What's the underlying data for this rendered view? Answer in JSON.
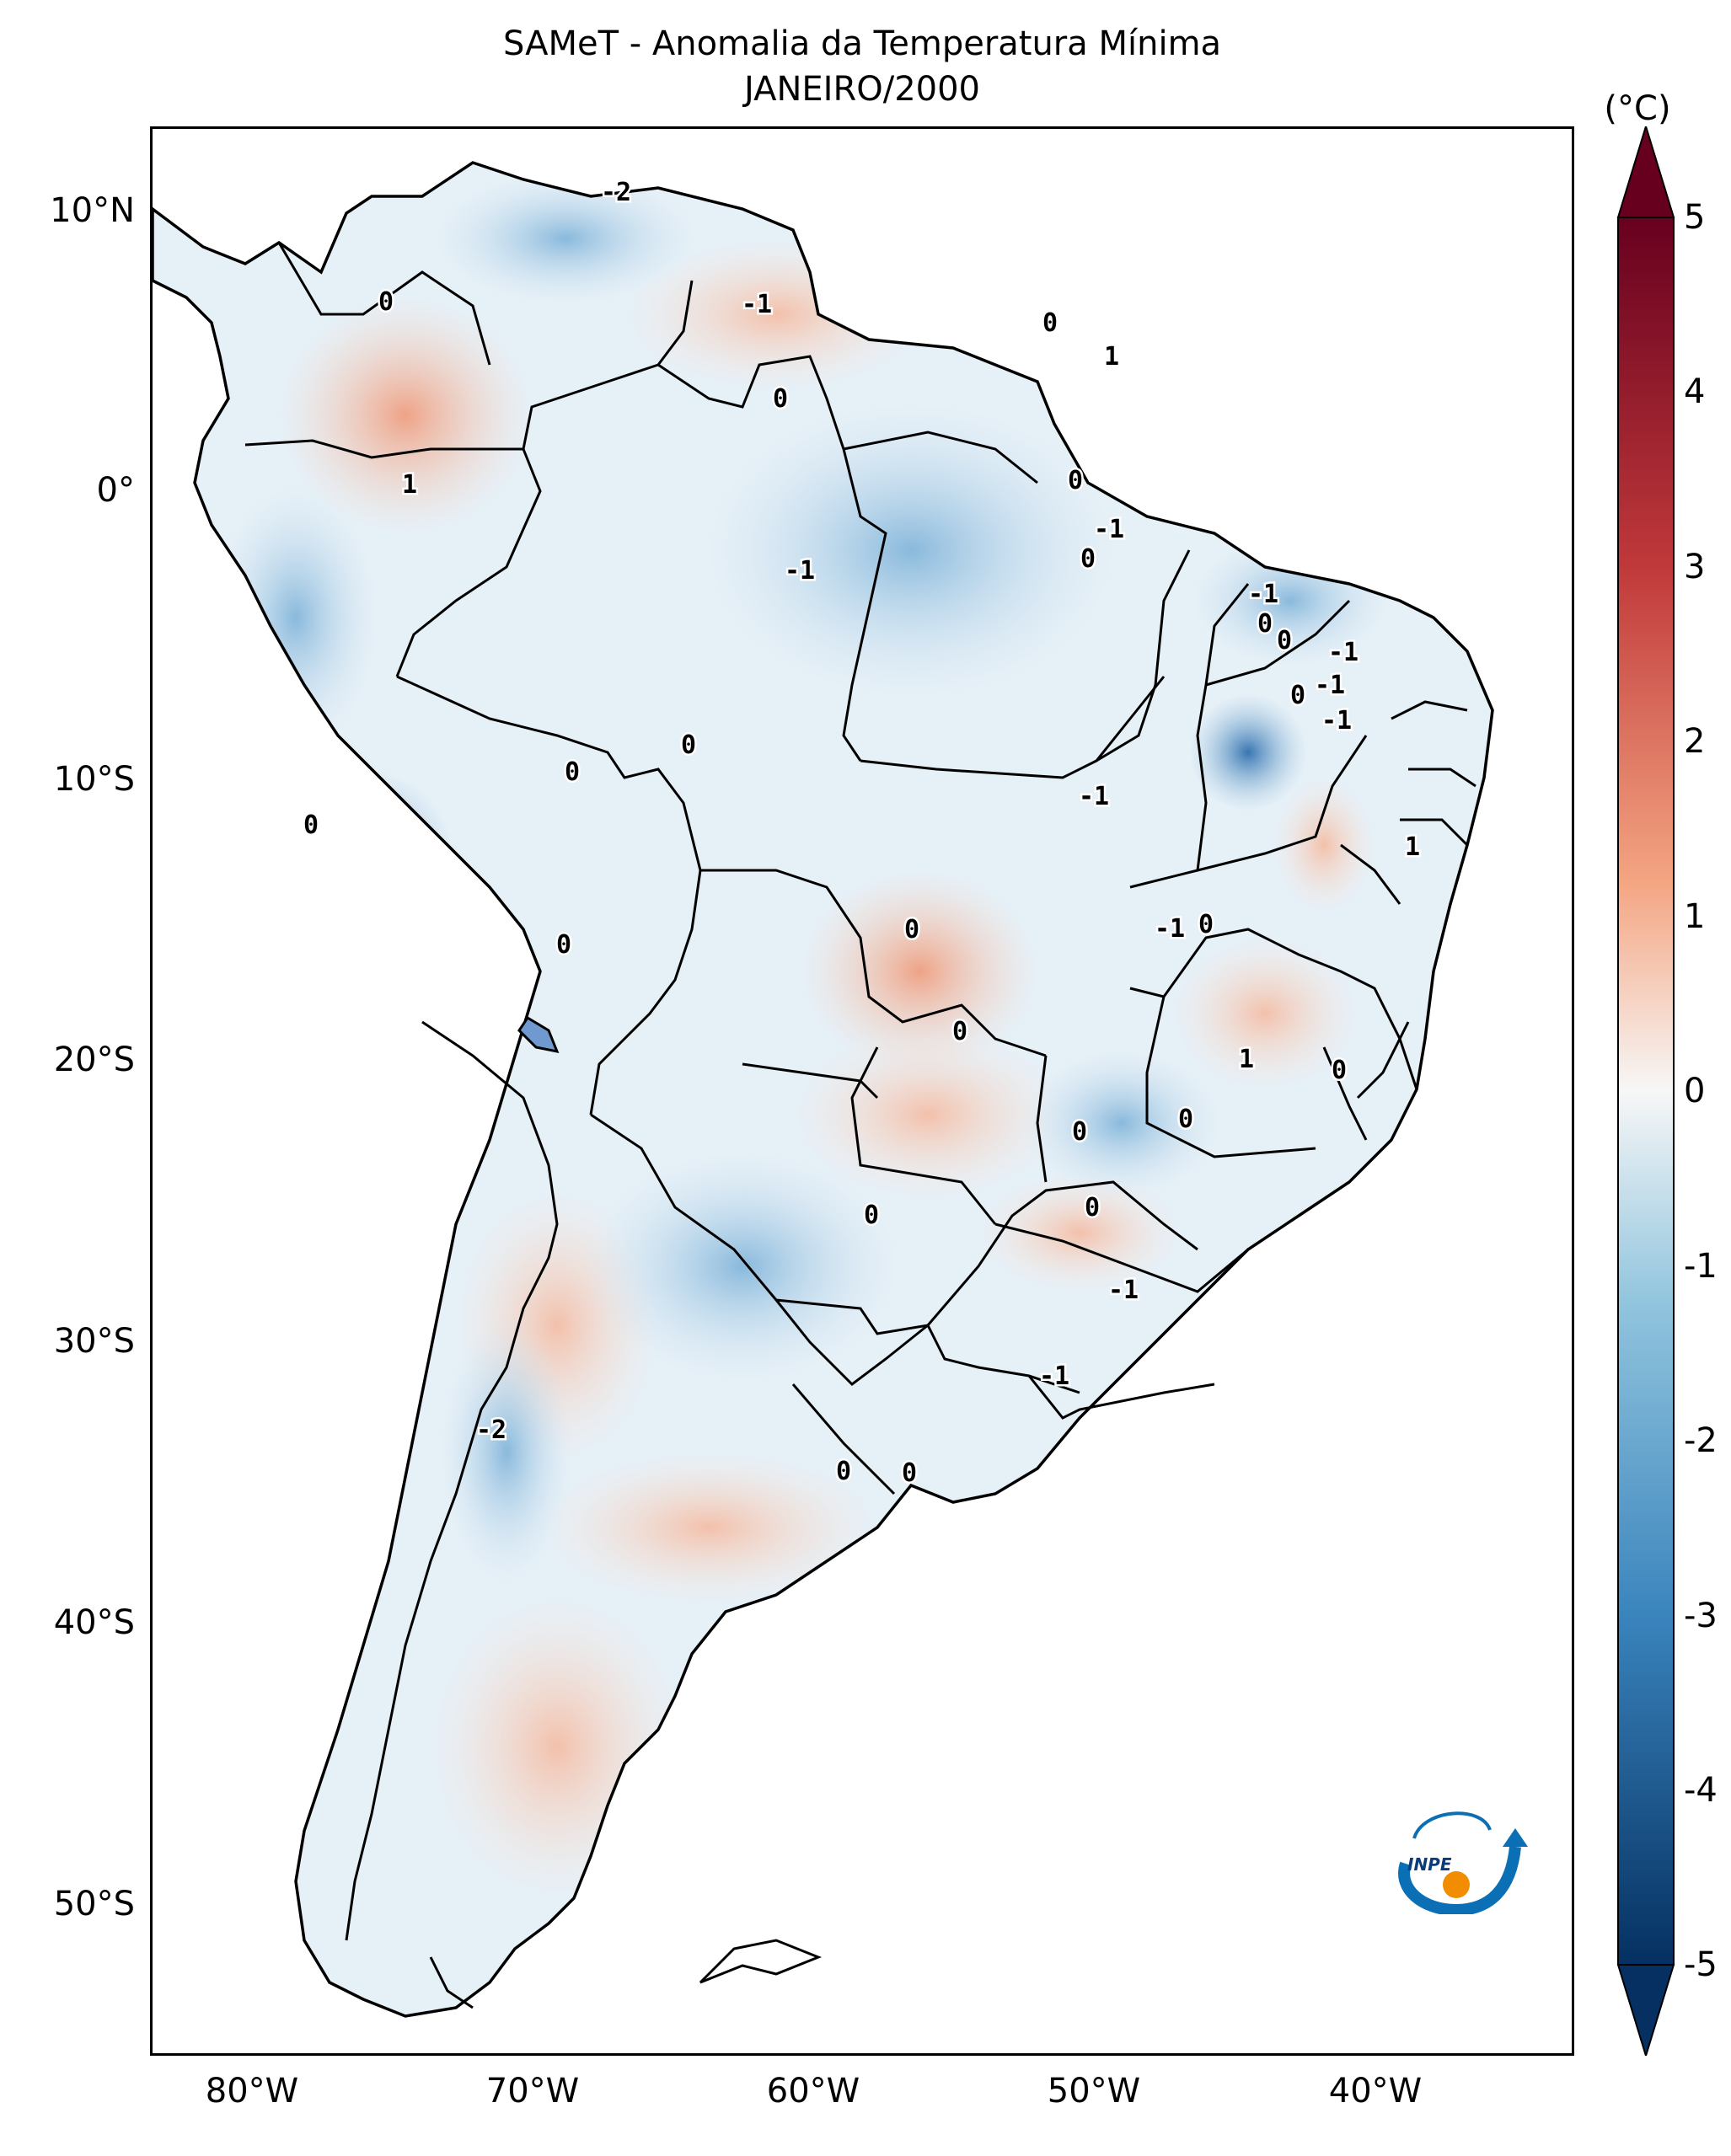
{
  "title": {
    "line1": "SAMeT - Anomalia da Temperatura Mínima",
    "line2": "JANEIRO/2000"
  },
  "colorbar": {
    "unit": "(°C)",
    "ticks": [
      "5",
      "4",
      "3",
      "2",
      "1",
      "0",
      "-1",
      "-2",
      "-3",
      "-4",
      "-5"
    ],
    "colors": {
      "max": "#67001f",
      "high": "#d6604d",
      "mid_high": "#f4a582",
      "zero": "#f7f7f7",
      "mid_low": "#92c5de",
      "low": "#2166ac",
      "min": "#053061"
    }
  },
  "axes": {
    "lat_labels": [
      "10°N",
      "0°",
      "10°S",
      "20°S",
      "30°S",
      "40°S",
      "50°S"
    ],
    "lon_labels": [
      "80°W",
      "70°W",
      "60°W",
      "50°W",
      "40°W"
    ]
  },
  "contour_labels": [
    "-2",
    "1",
    "0",
    "-1",
    "0",
    "1",
    "0",
    "0",
    "-1",
    "0",
    "-1",
    "0",
    "-1",
    "0",
    "-1",
    "-1",
    "0",
    "-1",
    "0",
    "0",
    "-1",
    "0",
    "0",
    "0",
    "-1",
    "1",
    "0",
    "0",
    "1",
    "0",
    "0",
    "0",
    "0",
    "0",
    "-1",
    "-1",
    "-2",
    "0",
    "0"
  ],
  "logo": {
    "text": "INPE",
    "colors": {
      "arrow": "#0a6fb5",
      "dot": "#f28c00"
    }
  }
}
